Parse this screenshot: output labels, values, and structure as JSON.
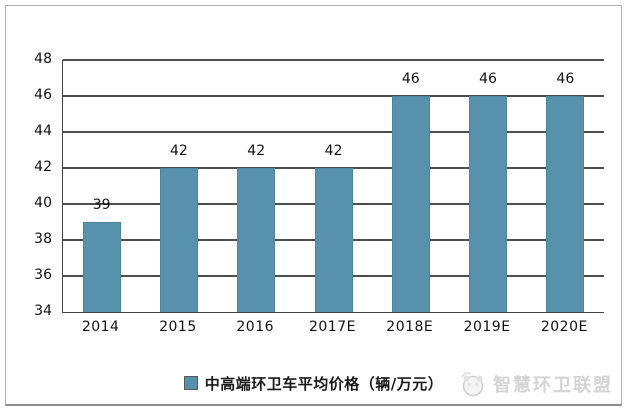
{
  "chart_data": {
    "type": "bar",
    "categories": [
      "2014",
      "2015",
      "2016",
      "2017E",
      "2018E",
      "2019E",
      "2020E"
    ],
    "values": [
      39,
      42,
      42,
      42,
      46,
      46,
      46
    ],
    "series_name": "中高端环卫车平均价格（辆/万元）",
    "title": "",
    "xlabel": "",
    "ylabel": "",
    "ylim": [
      34,
      48
    ],
    "ytick_step": 2,
    "grid": true,
    "legend_position": "bottom",
    "bar_color": "#5891ab",
    "bar_border_color": "#4c849f",
    "grid_color": "#4d4d4d",
    "label_color": "#111111"
  },
  "legend": {
    "swatch_color": "#5891ab"
  },
  "watermark": {
    "text": "智慧环卫联盟",
    "icon": "brand-logo-icon",
    "color": "#d4d4d4"
  }
}
